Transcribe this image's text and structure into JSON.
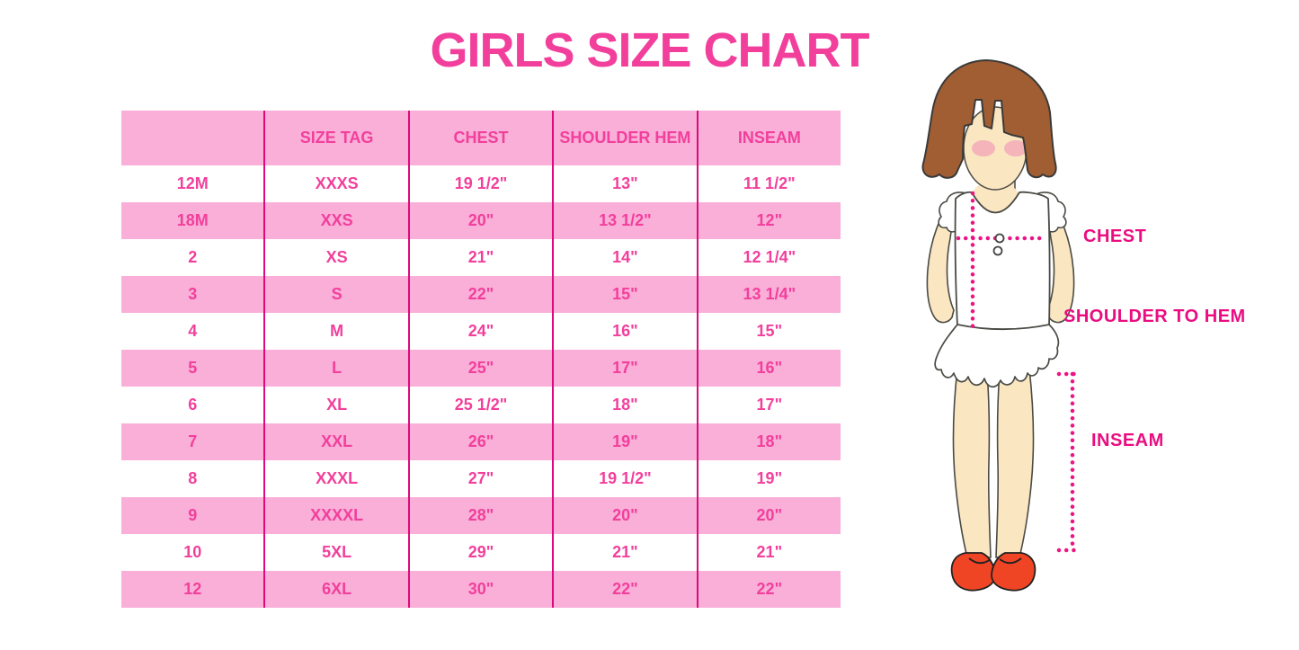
{
  "title": "GIRLS SIZE CHART",
  "table": {
    "columns": [
      "",
      "SIZE TAG",
      "CHEST",
      "SHOULDER HEM",
      "INSEAM"
    ],
    "rows": [
      [
        "12M",
        "XXXS",
        "19 1/2\"",
        "13\"",
        "11 1/2\""
      ],
      [
        "18M",
        "XXS",
        "20\"",
        "13 1/2\"",
        "12\""
      ],
      [
        "2",
        "XS",
        "21\"",
        "14\"",
        "12 1/4\""
      ],
      [
        "3",
        "S",
        "22\"",
        "15\"",
        "13 1/4\""
      ],
      [
        "4",
        "M",
        "24\"",
        "16\"",
        "15\""
      ],
      [
        "5",
        "L",
        "25\"",
        "17\"",
        "16\""
      ],
      [
        "6",
        "XL",
        "25 1/2\"",
        "18\"",
        "17\""
      ],
      [
        "7",
        "XXL",
        "26\"",
        "19\"",
        "18\""
      ],
      [
        "8",
        "XXXL",
        "27\"",
        "19 1/2\"",
        "19\""
      ],
      [
        "9",
        "XXXXL",
        "28\"",
        "20\"",
        "20\""
      ],
      [
        "10",
        "5XL",
        "29\"",
        "21\"",
        "21\""
      ],
      [
        "12",
        "6XL",
        "30\"",
        "22\"",
        "22\""
      ]
    ]
  },
  "figure": {
    "chest_label": "CHEST",
    "shoulder_hem_label": "SHOULDER TO HEM",
    "inseam_label": "INSEAM"
  },
  "colors": {
    "title_pink": "#F23F9C",
    "row_band_pink": "#F9AFD8",
    "column_line_magenta": "#DC0A7C",
    "dotted_line_magenta": "#EC1482",
    "label_magenta": "#EA0D81",
    "hair_brown": "#A15E33",
    "skin": "#FAE6C0",
    "blush_pink": "#F2A8B8",
    "shoe_red": "#EF4524"
  },
  "chart_data": {
    "type": "table",
    "title": "GIRLS SIZE CHART",
    "columns": [
      "",
      "SIZE TAG",
      "CHEST",
      "SHOULDER HEM",
      "INSEAM"
    ],
    "rows": [
      [
        "12M",
        "XXXS",
        "19 1/2\"",
        "13\"",
        "11 1/2\""
      ],
      [
        "18M",
        "XXS",
        "20\"",
        "13 1/2\"",
        "12\""
      ],
      [
        "2",
        "XS",
        "21\"",
        "14\"",
        "12 1/4\""
      ],
      [
        "3",
        "S",
        "22\"",
        "15\"",
        "13 1/4\""
      ],
      [
        "4",
        "M",
        "24\"",
        "16\"",
        "15\""
      ],
      [
        "5",
        "L",
        "25\"",
        "17\"",
        "16\""
      ],
      [
        "6",
        "XL",
        "25 1/2\"",
        "18\"",
        "17\""
      ],
      [
        "7",
        "XXL",
        "26\"",
        "19\"",
        "18\""
      ],
      [
        "8",
        "XXXL",
        "27\"",
        "19 1/2\"",
        "19\""
      ],
      [
        "9",
        "XXXXL",
        "28\"",
        "20\"",
        "20\""
      ],
      [
        "10",
        "5XL",
        "29\"",
        "21\"",
        "21\""
      ],
      [
        "12",
        "6XL",
        "30\"",
        "22\"",
        "22\""
      ]
    ],
    "units": "inches",
    "annotations": [
      "CHEST",
      "SHOULDER TO HEM",
      "INSEAM"
    ]
  }
}
